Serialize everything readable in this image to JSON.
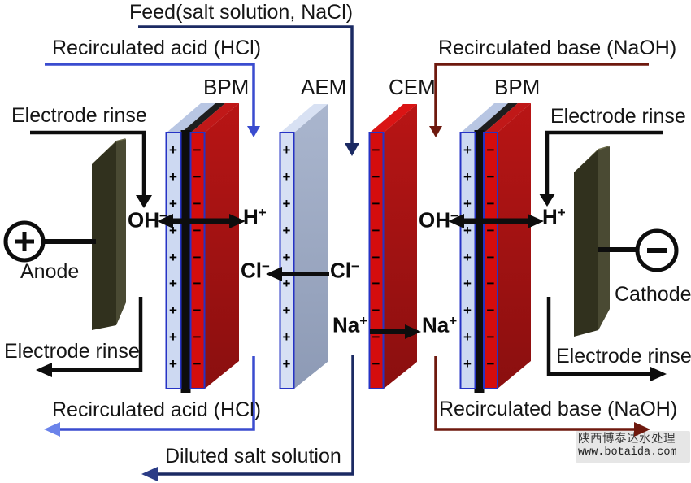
{
  "labels": {
    "feed": "Feed(salt solution, NaCl)",
    "recirculated_acid_top": "Recirculated acid (HCl)",
    "recirculated_base_top": "Recirculated base (NaOH)",
    "recirculated_acid_bottom": "Recirculated acid (HCl)",
    "recirculated_base_bottom": "Recirculated base (NaOH)",
    "diluted_salt": "Diluted salt solution",
    "electrode_rinse_top_left": "Electrode rinse",
    "electrode_rinse_top_right": "Electrode rinse",
    "electrode_rinse_bottom_left": "Electrode rinse",
    "electrode_rinse_bottom_right": "Electrode rinse",
    "anode": "Anode",
    "cathode": "Cathode"
  },
  "membranes": [
    {
      "id": "bpm-left",
      "label": "BPM",
      "layers": [
        {
          "sign": "+",
          "count": 9
        },
        {
          "sign": "−",
          "count": 9
        }
      ]
    },
    {
      "id": "aem",
      "label": "AEM",
      "layers": [
        {
          "sign": "+",
          "count": 9
        }
      ]
    },
    {
      "id": "cem",
      "label": "CEM",
      "layers": [
        {
          "sign": "−",
          "count": 9
        }
      ]
    },
    {
      "id": "bpm-right",
      "label": "BPM",
      "layers": [
        {
          "sign": "+",
          "count": 9
        },
        {
          "sign": "−",
          "count": 9
        }
      ]
    }
  ],
  "ions": {
    "oh_left": {
      "base": "OH",
      "charge": "−"
    },
    "h_left": {
      "base": "H",
      "charge": "+"
    },
    "cl_left": {
      "base": "Cl",
      "charge": "−"
    },
    "cl_right": {
      "base": "Cl",
      "charge": "−"
    },
    "na_left": {
      "base": "Na",
      "charge": "+"
    },
    "na_right": {
      "base": "Na",
      "charge": "+"
    },
    "oh_right": {
      "base": "OH",
      "charge": "−"
    },
    "h_right": {
      "base": "H",
      "charge": "+"
    }
  },
  "electrode_symbols": {
    "anode_sign": "+",
    "cathode_sign": "−"
  },
  "watermark": {
    "line1": "陕西博泰达水处理",
    "line2": "www.botaida.com"
  },
  "colors": {
    "feed_line": "#1b2a63",
    "acid_line": "#3a4ccf",
    "base_line": "#6e190e",
    "membrane_border": "#2633c5",
    "anion_layer": "#cdd9f2",
    "cation_layer": "#d40d0d",
    "bpm_interlayer": "#0d0d0d",
    "electrode_body": "#31311e"
  }
}
